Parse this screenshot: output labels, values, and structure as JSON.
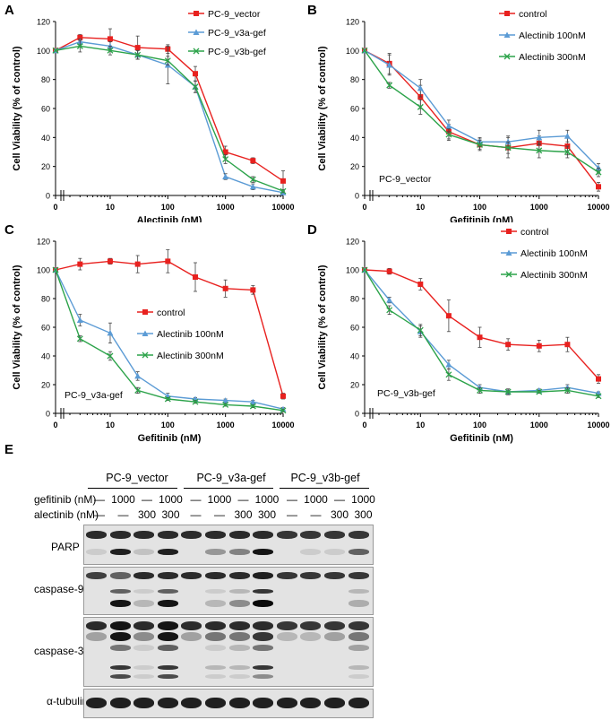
{
  "panels": {
    "a": "A",
    "b": "B",
    "c": "C",
    "d": "D",
    "e": "E"
  },
  "chart_data": [
    {
      "id": "A",
      "type": "line",
      "xscale": "log",
      "xlabel": "Alectinib (nM)",
      "ylabel": "Cell Viability (% of control)",
      "ylim": [
        0,
        120
      ],
      "yticks": [
        0,
        20,
        40,
        60,
        80,
        100,
        120
      ],
      "xticks": [
        0,
        10,
        100,
        1000,
        10000
      ],
      "xtick_labels": [
        "0",
        "10",
        "100",
        "1000",
        "10000"
      ],
      "legend_position": "top-right",
      "annotation": "",
      "x": [
        0,
        3,
        10,
        30,
        100,
        300,
        1000,
        3000,
        10000
      ],
      "series": [
        {
          "name": "PC-9_vector",
          "color": "#e8211f",
          "marker": "square",
          "values": [
            100,
            109,
            108,
            102,
            101,
            84,
            30,
            24,
            10
          ],
          "errors": [
            0,
            2,
            7,
            8,
            3,
            5,
            4,
            2,
            7
          ]
        },
        {
          "name": "PC-9_v3a-gef",
          "color": "#5b9bd5",
          "marker": "triangle",
          "values": [
            100,
            106,
            103,
            97,
            90,
            75,
            13,
            6,
            2
          ],
          "errors": [
            0,
            2,
            3,
            3,
            13,
            4,
            2,
            2,
            1
          ]
        },
        {
          "name": "PC-9_v3b-gef",
          "color": "#2ca34a",
          "marker": "x",
          "values": [
            100,
            103,
            100,
            97,
            93,
            75,
            25,
            11,
            3
          ],
          "errors": [
            0,
            4,
            3,
            3,
            3,
            4,
            3,
            2,
            1
          ]
        }
      ]
    },
    {
      "id": "B",
      "type": "line",
      "xscale": "log",
      "xlabel": "Gefitinib (nM)",
      "ylabel": "Cell Viability (% of control)",
      "ylim": [
        0,
        120
      ],
      "yticks": [
        0,
        20,
        40,
        60,
        80,
        100,
        120
      ],
      "xticks": [
        0,
        10,
        100,
        1000,
        10000
      ],
      "xtick_labels": [
        "0",
        "10",
        "100",
        "1000",
        "10000"
      ],
      "legend_position": "top-right",
      "annotation": "PC-9_vector",
      "x": [
        0,
        3,
        10,
        30,
        100,
        300,
        1000,
        3000,
        10000
      ],
      "series": [
        {
          "name": "control",
          "color": "#e8211f",
          "marker": "square",
          "values": [
            100,
            91,
            68,
            44,
            35,
            33,
            36,
            34,
            6
          ],
          "errors": [
            0,
            7,
            8,
            5,
            4,
            7,
            5,
            6,
            3
          ]
        },
        {
          "name": "Alectinib 100nM",
          "color": "#5b9bd5",
          "marker": "triangle",
          "values": [
            100,
            90,
            74,
            48,
            37,
            37,
            40,
            41,
            19
          ],
          "errors": [
            0,
            7,
            6,
            4,
            3,
            4,
            5,
            4,
            3
          ]
        },
        {
          "name": "Alectinib 300nM",
          "color": "#2ca34a",
          "marker": "x",
          "values": [
            100,
            76,
            61,
            42,
            35,
            33,
            31,
            30,
            16
          ],
          "errors": [
            0,
            2,
            5,
            4,
            3,
            4,
            5,
            4,
            3
          ]
        }
      ]
    },
    {
      "id": "C",
      "type": "line",
      "xscale": "log",
      "xlabel": "Gefitinib (nM)",
      "ylabel": "Cell Viability (% of control)",
      "ylim": [
        0,
        120
      ],
      "yticks": [
        0,
        20,
        40,
        60,
        80,
        100,
        120
      ],
      "xticks": [
        0,
        10,
        100,
        1000,
        10000
      ],
      "xtick_labels": [
        "0",
        "10",
        "100",
        "1000",
        "10000"
      ],
      "legend_position": "center-right",
      "annotation": "PC-9_v3a-gef",
      "x": [
        0,
        3,
        10,
        30,
        100,
        300,
        1000,
        3000,
        10000
      ],
      "series": [
        {
          "name": "control",
          "color": "#e8211f",
          "marker": "square",
          "values": [
            100,
            104,
            106,
            104,
            106,
            95,
            87,
            86,
            12
          ],
          "errors": [
            0,
            4,
            2,
            6,
            8,
            10,
            6,
            3,
            2
          ]
        },
        {
          "name": "Alectinib 100nM",
          "color": "#5b9bd5",
          "marker": "triangle",
          "values": [
            100,
            65,
            56,
            26,
            12,
            10,
            9,
            8,
            3
          ],
          "errors": [
            0,
            4,
            7,
            3,
            2,
            1,
            1,
            1,
            1
          ]
        },
        {
          "name": "Alectinib 300nM",
          "color": "#2ca34a",
          "marker": "x",
          "values": [
            100,
            52,
            40,
            16,
            10,
            8,
            6,
            5,
            2
          ],
          "errors": [
            0,
            2,
            3,
            2,
            1,
            1,
            1,
            1,
            1
          ]
        }
      ]
    },
    {
      "id": "D",
      "type": "line",
      "xscale": "log",
      "xlabel": "Gefitinib (nM)",
      "ylabel": "Cell Viability (% of control)",
      "ylim": [
        0,
        120
      ],
      "yticks": [
        0,
        20,
        40,
        60,
        80,
        100,
        120
      ],
      "xticks": [
        0,
        10,
        100,
        1000,
        10000
      ],
      "xtick_labels": [
        "0",
        "10",
        "100",
        "1000",
        "10000"
      ],
      "legend_position": "top-right",
      "annotation": "PC-9_v3b-gef",
      "x": [
        0,
        3,
        10,
        30,
        100,
        300,
        1000,
        3000,
        10000
      ],
      "series": [
        {
          "name": "control",
          "color": "#e8211f",
          "marker": "square",
          "values": [
            100,
            99,
            90,
            68,
            53,
            48,
            47,
            48,
            24
          ],
          "errors": [
            0,
            2,
            4,
            11,
            7,
            4,
            4,
            5,
            3
          ]
        },
        {
          "name": "Alectinib 100nM",
          "color": "#5b9bd5",
          "marker": "triangle",
          "values": [
            100,
            79,
            57,
            34,
            18,
            15,
            16,
            18,
            14
          ],
          "errors": [
            0,
            2,
            4,
            3,
            2,
            2,
            1,
            2,
            1
          ]
        },
        {
          "name": "Alectinib 300nM",
          "color": "#2ca34a",
          "marker": "x",
          "values": [
            100,
            72,
            58,
            27,
            16,
            15,
            15,
            16,
            12
          ],
          "errors": [
            0,
            3,
            4,
            4,
            2,
            2,
            1,
            2,
            1
          ]
        }
      ]
    }
  ],
  "blot": {
    "groups": [
      "PC-9_vector",
      "PC-9_v3a-gef",
      "PC-9_v3b-gef"
    ],
    "row_labels": {
      "gefitinib": "gefitinib  (nM)",
      "alectinib": "alectinib  (nM)"
    },
    "gefitinib": [
      "—",
      "1000",
      "—",
      "1000",
      "—",
      "1000",
      "—",
      "1000",
      "—",
      "1000",
      "—",
      "1000"
    ],
    "alectinib": [
      "—",
      "—",
      "300",
      "300",
      "—",
      "—",
      "300",
      "300",
      "—",
      "—",
      "300",
      "300"
    ],
    "proteins": [
      "PARP",
      "caspase-9",
      "caspase-3",
      "α-tubulin"
    ]
  }
}
